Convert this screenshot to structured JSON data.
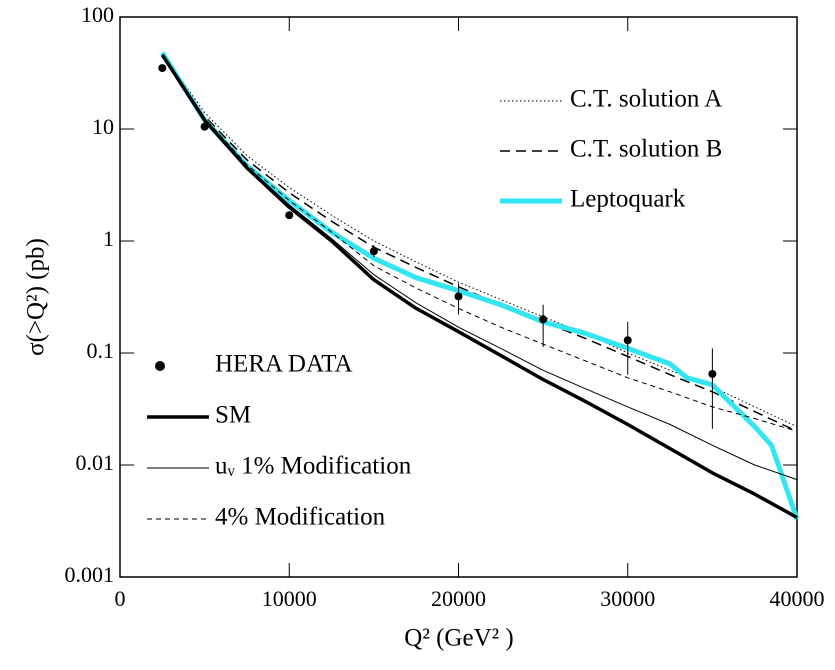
{
  "chart_data": {
    "type": "line",
    "xlabel": "Q²   (GeV² )",
    "ylabel": "σ(>Q²)  (pb)",
    "xlim": [
      0,
      40000
    ],
    "xticks": [
      0,
      10000,
      20000,
      30000,
      40000
    ],
    "ylim": [
      0.001,
      100
    ],
    "yticks": [
      0.001,
      0.01,
      0.1,
      1,
      10,
      100
    ],
    "yscale": "log",
    "series": [
      {
        "name": "C.T. solution A",
        "color": "#000000",
        "style": "dotted",
        "linewidth": 1,
        "legend": "upper right",
        "x": [
          2500,
          5000,
          7500,
          10000,
          12500,
          15000,
          17500,
          20000,
          22500,
          25000,
          27500,
          30000,
          32500,
          35000,
          37500,
          40000
        ],
        "values": [
          48,
          14,
          5.8,
          3.0,
          1.7,
          1.0,
          0.65,
          0.43,
          0.3,
          0.21,
          0.15,
          0.1,
          0.07,
          0.05,
          0.033,
          0.022
        ]
      },
      {
        "name": "C.T. solution B",
        "color": "#000000",
        "style": "dashed",
        "linewidth": 1.5,
        "legend": "upper right",
        "x": [
          2500,
          5000,
          7500,
          10000,
          12500,
          15000,
          17500,
          20000,
          22500,
          25000,
          27500,
          30000,
          32500,
          35000,
          37500,
          40000
        ],
        "values": [
          47,
          13,
          5.3,
          2.7,
          1.5,
          0.88,
          0.58,
          0.39,
          0.27,
          0.19,
          0.135,
          0.093,
          0.064,
          0.045,
          0.03,
          0.02
        ]
      },
      {
        "name": "Leptoquark",
        "color": "#33e5f0",
        "style": "solid",
        "linewidth": 5,
        "legend": "upper right",
        "x": [
          2500,
          5000,
          7500,
          10000,
          12500,
          15000,
          17500,
          20000,
          22500,
          25000,
          27500,
          30000,
          32500,
          33500,
          35000,
          37500,
          38500,
          40000
        ],
        "values": [
          48,
          12,
          4.7,
          2.3,
          1.2,
          0.7,
          0.47,
          0.36,
          0.27,
          0.19,
          0.15,
          0.11,
          0.08,
          0.06,
          0.052,
          0.022,
          0.015,
          0.0033
        ]
      },
      {
        "name": "HERA DATA",
        "color": "#000000",
        "style": "points",
        "linewidth": 1,
        "legend": "lower left",
        "x": [
          2500,
          5000,
          10000,
          15000,
          20000,
          25000,
          30000,
          35000
        ],
        "values": [
          35,
          10.5,
          1.7,
          0.81,
          0.32,
          0.2,
          0.13,
          0.065
        ],
        "ylow": [
          null,
          null,
          null,
          0.72,
          0.22,
          0.113,
          0.064,
          0.021
        ],
        "yhigh": [
          null,
          null,
          null,
          0.92,
          0.42,
          0.27,
          0.19,
          0.11
        ]
      },
      {
        "name": "SM",
        "color": "#000000",
        "style": "solid",
        "linewidth": 3.5,
        "legend": "lower left",
        "x": [
          2500,
          5000,
          7500,
          10000,
          12500,
          15000,
          17500,
          20000,
          22500,
          25000,
          27500,
          30000,
          32500,
          35000,
          37500,
          40000
        ],
        "values": [
          46,
          12,
          4.5,
          2.0,
          1.0,
          0.45,
          0.25,
          0.155,
          0.095,
          0.058,
          0.037,
          0.023,
          0.014,
          0.0085,
          0.0055,
          0.0034
        ]
      },
      {
        "name": "uᵥ 1% Modification",
        "color": "#000000",
        "style": "solid",
        "linewidth": 1,
        "legend": "lower left",
        "x": [
          2500,
          5000,
          7500,
          10000,
          12500,
          15000,
          17500,
          20000,
          22500,
          25000,
          27500,
          30000,
          32500,
          35000,
          37500,
          40000
        ],
        "values": [
          46,
          12,
          4.6,
          2.1,
          1.05,
          0.5,
          0.28,
          0.17,
          0.11,
          0.07,
          0.048,
          0.033,
          0.023,
          0.015,
          0.01,
          0.0074
        ]
      },
      {
        "name": "4% Modification",
        "color": "#000000",
        "style": "dashed-thin",
        "linewidth": 1,
        "legend": "lower left",
        "x": [
          2500,
          5000,
          7500,
          10000,
          12500,
          15000,
          17500,
          20000,
          22500,
          25000,
          27500,
          30000,
          32500,
          35000,
          37500,
          40000
        ],
        "values": [
          46,
          12.5,
          4.8,
          2.3,
          1.2,
          0.6,
          0.38,
          0.25,
          0.17,
          0.12,
          0.085,
          0.06,
          0.045,
          0.033,
          0.026,
          0.02
        ]
      }
    ]
  }
}
